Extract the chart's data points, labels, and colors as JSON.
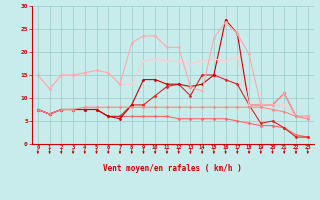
{
  "x": [
    0,
    1,
    2,
    3,
    4,
    5,
    6,
    7,
    8,
    9,
    10,
    11,
    12,
    13,
    14,
    15,
    16,
    17,
    18,
    19,
    20,
    21,
    22,
    23
  ],
  "series": [
    {
      "color": "#ff6666",
      "linewidth": 0.8,
      "marker": "D",
      "markersize": 1.5,
      "values": [
        7.5,
        6.5,
        7.5,
        7.5,
        7.5,
        7.5,
        6.0,
        6.0,
        6.0,
        6.0,
        6.0,
        6.0,
        5.5,
        5.5,
        5.5,
        5.5,
        5.5,
        5.0,
        4.5,
        4.0,
        4.0,
        3.5,
        2.0,
        1.5
      ]
    },
    {
      "color": "#dd2222",
      "linewidth": 0.8,
      "marker": "D",
      "markersize": 1.5,
      "values": [
        7.5,
        6.5,
        7.5,
        7.5,
        7.5,
        7.5,
        6.0,
        6.0,
        8.5,
        8.5,
        10.5,
        12.5,
        13.0,
        10.5,
        15.0,
        15.0,
        14.0,
        13.0,
        8.5,
        4.5,
        5.0,
        3.5,
        1.5,
        1.5
      ]
    },
    {
      "color": "#cc0000",
      "linewidth": 0.8,
      "marker": "D",
      "markersize": 1.5,
      "values": [
        7.5,
        6.5,
        7.5,
        7.5,
        7.5,
        7.5,
        6.0,
        5.5,
        8.5,
        14.0,
        14.0,
        13.0,
        13.0,
        12.5,
        13.0,
        15.0,
        27.0,
        24.0,
        8.5,
        8.5,
        8.5,
        11.0,
        6.0,
        6.0
      ]
    },
    {
      "color": "#ffcccc",
      "linewidth": 0.8,
      "marker": "D",
      "markersize": 1.5,
      "values": [
        15.0,
        12.0,
        15.0,
        15.0,
        15.5,
        16.0,
        15.5,
        13.0,
        13.0,
        18.0,
        18.5,
        18.0,
        18.0,
        17.5,
        18.0,
        18.5,
        18.0,
        19.0,
        8.5,
        8.5,
        8.5,
        8.5,
        6.0,
        6.0
      ]
    },
    {
      "color": "#ffaaaa",
      "linewidth": 0.8,
      "marker": "D",
      "markersize": 1.5,
      "values": [
        15.0,
        12.0,
        15.0,
        15.0,
        15.5,
        16.0,
        15.5,
        13.0,
        22.0,
        23.5,
        23.5,
        21.0,
        21.0,
        12.5,
        11.5,
        23.0,
        26.5,
        24.0,
        19.5,
        8.5,
        8.5,
        11.0,
        6.0,
        6.0
      ]
    },
    {
      "color": "#ff8888",
      "linewidth": 0.8,
      "marker": "D",
      "markersize": 1.5,
      "values": [
        7.5,
        6.5,
        7.5,
        7.5,
        8.0,
        8.0,
        8.0,
        8.0,
        8.0,
        8.0,
        8.0,
        8.0,
        8.0,
        8.0,
        8.0,
        8.0,
        8.0,
        8.0,
        8.0,
        8.0,
        7.5,
        7.0,
        6.0,
        5.5
      ]
    }
  ],
  "xlabel": "Vent moyen/en rafales ( km/h )",
  "xlim_min": -0.5,
  "xlim_max": 23.5,
  "ylim": [
    0,
    30
  ],
  "yticks": [
    0,
    5,
    10,
    15,
    20,
    25,
    30
  ],
  "xticks": [
    0,
    1,
    2,
    3,
    4,
    5,
    6,
    7,
    8,
    9,
    10,
    11,
    12,
    13,
    14,
    15,
    16,
    17,
    18,
    19,
    20,
    21,
    22,
    23
  ],
  "bg_color": "#c8ecec",
  "grid_color": "#99cccc",
  "arrow_color": "#cc0000",
  "tick_color": "#cc0000",
  "label_color": "#cc0000",
  "spine_color": "#cc0000"
}
